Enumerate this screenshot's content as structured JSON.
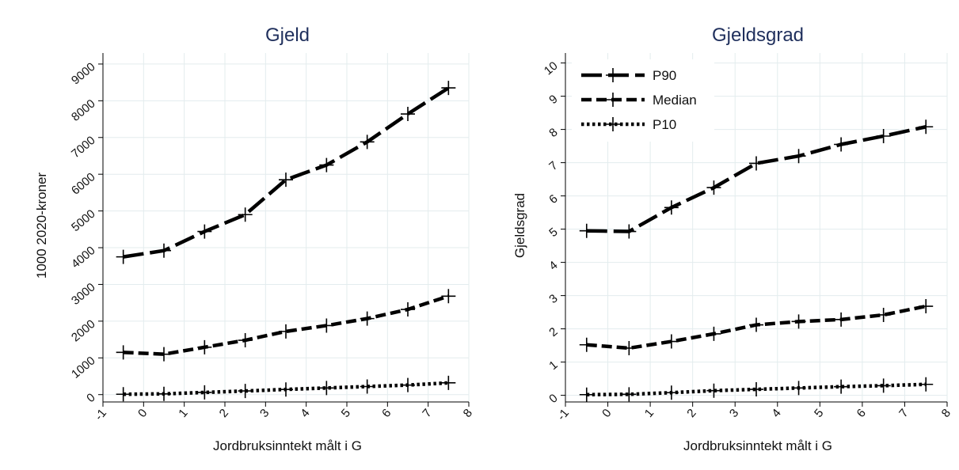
{
  "chart_data": [
    {
      "type": "line",
      "title": "Gjeld",
      "xlabel": "Jordbruksinntekt målt i G",
      "ylabel": "1000 2020-kroner",
      "xlim": [
        -1,
        8
      ],
      "ylim": [
        -200,
        9300
      ],
      "x_ticks": [
        -1,
        0,
        1,
        2,
        3,
        4,
        5,
        6,
        7,
        8
      ],
      "y_ticks": [
        0,
        1000,
        2000,
        3000,
        4000,
        5000,
        6000,
        7000,
        8000,
        9000
      ],
      "grid": true,
      "legend": null,
      "x": [
        -0.5,
        0.5,
        1.5,
        2.5,
        3.5,
        4.5,
        5.5,
        6.5,
        7.5
      ],
      "series": [
        {
          "name": "P90",
          "style": "longdash",
          "values": [
            3750,
            3920,
            4440,
            4900,
            5850,
            6250,
            6880,
            7640,
            8350
          ]
        },
        {
          "name": "Median",
          "style": "dash",
          "values": [
            1150,
            1100,
            1290,
            1480,
            1720,
            1880,
            2070,
            2320,
            2680
          ]
        },
        {
          "name": "P10",
          "style": "dot",
          "values": [
            10,
            20,
            60,
            100,
            140,
            180,
            220,
            260,
            320
          ]
        }
      ]
    },
    {
      "type": "line",
      "title": "Gjeldsgrad",
      "xlabel": "Jordbruksinntekt målt i G",
      "ylabel": "Gjeldsgrad",
      "xlim": [
        -1,
        8
      ],
      "ylim": [
        -0.2,
        10.3
      ],
      "x_ticks": [
        -1,
        0,
        1,
        2,
        3,
        4,
        5,
        6,
        7,
        8
      ],
      "y_ticks": [
        0,
        1,
        2,
        3,
        4,
        5,
        6,
        7,
        8,
        9,
        10
      ],
      "grid": true,
      "legend": "top-left",
      "x": [
        -0.5,
        0.5,
        1.5,
        2.5,
        3.5,
        4.5,
        5.5,
        6.5,
        7.5
      ],
      "series": [
        {
          "name": "P90",
          "style": "longdash",
          "values": [
            4.95,
            4.93,
            5.65,
            6.25,
            6.98,
            7.2,
            7.55,
            7.8,
            8.08
          ]
        },
        {
          "name": "Median",
          "style": "dash",
          "values": [
            1.52,
            1.42,
            1.62,
            1.85,
            2.12,
            2.22,
            2.28,
            2.42,
            2.68
          ]
        },
        {
          "name": "P10",
          "style": "dot",
          "values": [
            0.02,
            0.03,
            0.08,
            0.14,
            0.18,
            0.22,
            0.26,
            0.29,
            0.33
          ]
        }
      ]
    }
  ]
}
